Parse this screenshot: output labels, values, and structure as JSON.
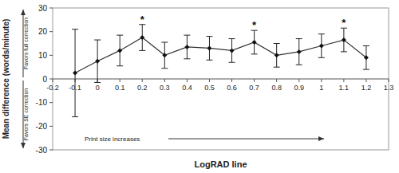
{
  "chart_data": {
    "type": "line",
    "x_label": "LogRAD line",
    "y_label": "Mean difference (words/minute)",
    "x": [
      -0.1,
      0,
      0.1,
      0.2,
      0.3,
      0.4,
      0.5,
      0.6,
      0.7,
      0.8,
      0.9,
      1.0,
      1.1,
      1.2
    ],
    "series": [
      {
        "values": [
          2.5,
          7.5,
          12,
          17.5,
          10,
          13.5,
          13,
          12,
          15.5,
          10,
          11.5,
          14,
          16.5,
          9
        ],
        "errors": [
          18.5,
          9,
          6.5,
          5.5,
          5.5,
          5,
          5,
          5,
          5,
          5,
          5.5,
          5,
          5,
          5
        ],
        "color": "#333333",
        "marker": "diamond"
      }
    ],
    "xlim": [
      -0.2,
      1.3
    ],
    "xticks": [
      -0.2,
      -0.1,
      0,
      0.1,
      0.2,
      0.3,
      0.4,
      0.5,
      0.6,
      0.7,
      0.8,
      0.9,
      1.0,
      1.1,
      1.2,
      1.3
    ],
    "ylim": [
      -30,
      30
    ],
    "yticks": [
      -30,
      -20,
      -10,
      0,
      10,
      20,
      30
    ],
    "grid": false,
    "significance_marks": [
      {
        "text": "*",
        "x": 0.2
      },
      {
        "text": "*",
        "x": 0.7
      },
      {
        "text": "*",
        "x": 1.1
      }
    ],
    "annotations": [
      "Favors full correction",
      "Favors SE correction",
      "Print size increases"
    ]
  }
}
